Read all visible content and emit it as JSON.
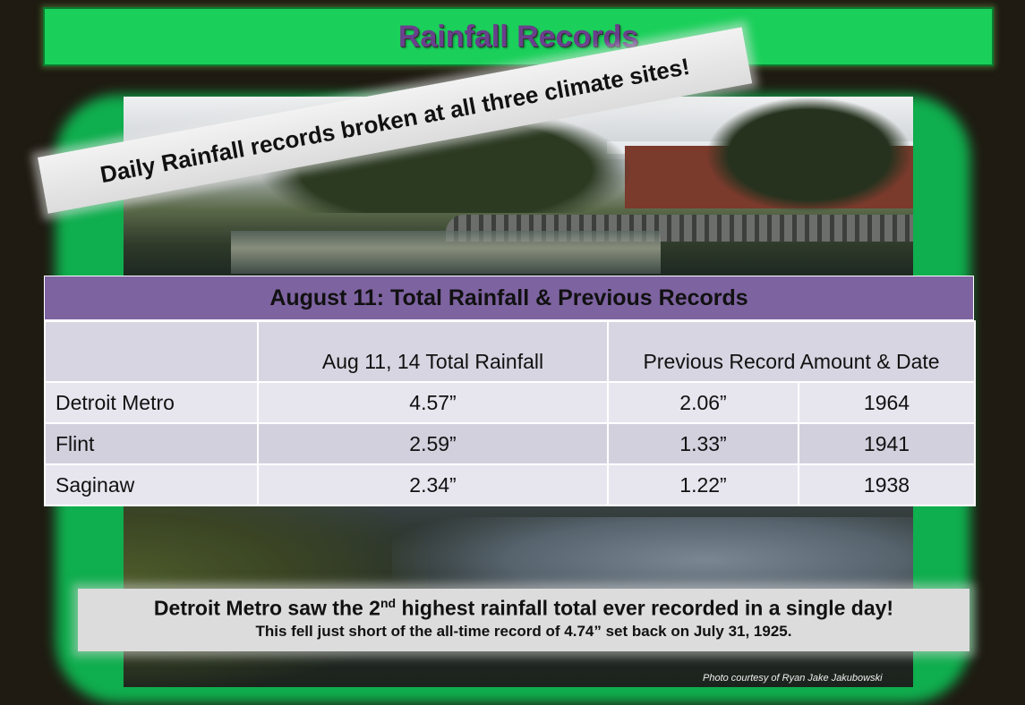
{
  "title": "Rainfall Records",
  "banner": "Daily Rainfall records broken at all three climate sites!",
  "table": {
    "title": "August 11:  Total Rainfall & Previous Records",
    "col_total": "Aug 11, 14  Total Rainfall",
    "col_previous": "Previous Record Amount & Date",
    "rows": [
      {
        "site": "Detroit Metro",
        "total": "4.57”",
        "prev_amount": "2.06”",
        "prev_year": "1964"
      },
      {
        "site": "Flint",
        "total": "2.59”",
        "prev_amount": "1.33”",
        "prev_year": "1941"
      },
      {
        "site": "Saginaw",
        "total": "2.34”",
        "prev_amount": "1.22”",
        "prev_year": "1938"
      }
    ]
  },
  "note": {
    "line1_a": "Detroit Metro saw the 2",
    "line1_sup": "nd",
    "line1_b": " highest rainfall total ever recorded in a single day!",
    "line2": "This fell just short of the all-time  record of 4.74” set back on July 31, 1925."
  },
  "credit": "Photo courtesy of Ryan Jake Jakubowski",
  "colors": {
    "title_bg": "#1ad05a",
    "title_text": "#6a3f8c",
    "frame_glow": "#0fae4e",
    "table_header": "#7e63a1"
  }
}
